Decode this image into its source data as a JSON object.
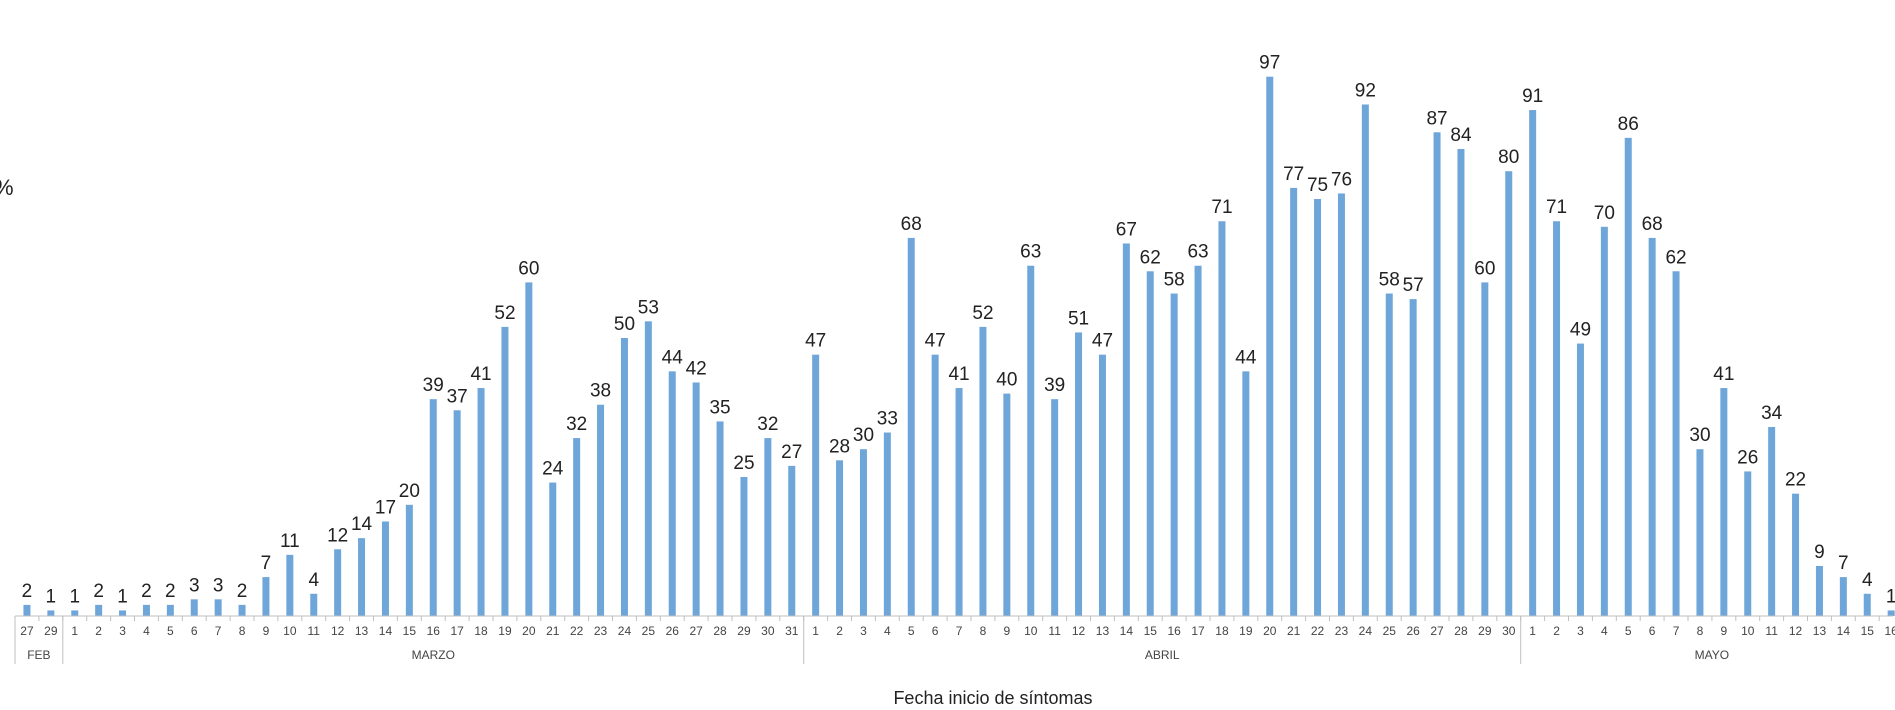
{
  "chart_data": {
    "type": "bar",
    "xlabel": "Fecha inicio de síntomas",
    "ylabel": "",
    "edge_mark": "%",
    "bar_color": "#6fa6d9",
    "grid": false,
    "ylim": [
      0,
      100
    ],
    "categories": [
      "27",
      "29",
      "1",
      "2",
      "3",
      "4",
      "5",
      "6",
      "7",
      "8",
      "9",
      "10",
      "11",
      "12",
      "13",
      "14",
      "15",
      "16",
      "17",
      "18",
      "19",
      "20",
      "21",
      "22",
      "23",
      "24",
      "25",
      "26",
      "27",
      "28",
      "29",
      "30",
      "31",
      "1",
      "2",
      "3",
      "4",
      "5",
      "6",
      "7",
      "8",
      "9",
      "10",
      "11",
      "12",
      "13",
      "14",
      "15",
      "16",
      "17",
      "18",
      "19",
      "20",
      "21",
      "22",
      "23",
      "24",
      "25",
      "26",
      "27",
      "28",
      "29",
      "30",
      "1",
      "2",
      "3",
      "4",
      "5",
      "6",
      "7",
      "8",
      "9",
      "10",
      "11",
      "12",
      "13",
      "14",
      "15",
      "16"
    ],
    "values": [
      2,
      1,
      1,
      2,
      1,
      2,
      2,
      3,
      3,
      2,
      7,
      11,
      4,
      12,
      14,
      17,
      20,
      39,
      37,
      41,
      52,
      60,
      24,
      32,
      38,
      50,
      53,
      44,
      42,
      35,
      25,
      32,
      27,
      47,
      28,
      30,
      33,
      68,
      47,
      41,
      52,
      40,
      63,
      39,
      51,
      47,
      67,
      62,
      58,
      63,
      71,
      44,
      97,
      77,
      75,
      76,
      92,
      58,
      57,
      87,
      84,
      60,
      80,
      91,
      71,
      49,
      70,
      86,
      68,
      62,
      30,
      41,
      26,
      34,
      22,
      9,
      7,
      4,
      1
    ],
    "months": [
      {
        "label": "FEB",
        "start": 0,
        "end": 1
      },
      {
        "label": "MARZO",
        "start": 2,
        "end": 32
      },
      {
        "label": "ABRIL",
        "start": 33,
        "end": 62
      },
      {
        "label": "MAYO",
        "start": 63,
        "end": 78
      }
    ]
  }
}
